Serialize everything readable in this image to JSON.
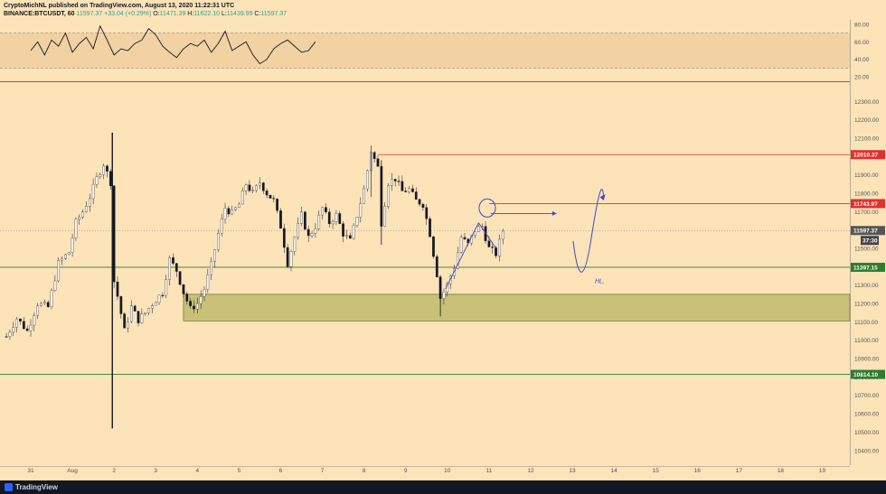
{
  "header": {
    "line1": "CryptoMichNL published on TradingView.com, August 13, 2020 11:22:31 UTC",
    "symbol": "BINANCE:BTCUSDT, 60",
    "price": "11597.37",
    "change": "+33.04 (+0.29%)",
    "o_label": "O:",
    "o": "11471.39",
    "h_label": "H:",
    "h": "11622.10",
    "l_label": "L:",
    "l": "11439.99",
    "c_label": "C:",
    "c": "11597.37"
  },
  "footer": {
    "brand": "TradingView"
  },
  "colors": {
    "background": "#fde3b8",
    "bull": "#f5f5f5",
    "bear": "#131722",
    "resistance": "#e03030",
    "support": "#2e7d32",
    "annotation": "#3b4bc8"
  },
  "chart_data": [
    {
      "type": "line",
      "panel": "RSI",
      "ylim": [
        15,
        85
      ],
      "y_ticks": [
        "80.00",
        "60.00",
        "40.00",
        "20.00"
      ],
      "band": [
        30,
        70
      ],
      "x": [
        0,
        4,
        8,
        12,
        16,
        20,
        24,
        28,
        32,
        36,
        40,
        44,
        48,
        52,
        56,
        60,
        64,
        68,
        72,
        76,
        80,
        84,
        88,
        92,
        96,
        100,
        104,
        108,
        112,
        116,
        120,
        124,
        128,
        132,
        136,
        140,
        144,
        148,
        152,
        156,
        160,
        164
      ],
      "values": [
        50,
        60,
        45,
        62,
        55,
        70,
        48,
        58,
        65,
        52,
        78,
        62,
        45,
        52,
        50,
        58,
        62,
        75,
        68,
        55,
        48,
        42,
        52,
        58,
        55,
        62,
        48,
        58,
        72,
        50,
        55,
        60,
        45,
        35,
        40,
        52,
        58,
        62,
        55,
        48,
        50,
        60
      ]
    },
    {
      "type": "candlestick",
      "panel": "price",
      "x_unit": "hours from Jul 31 00:00",
      "ylim": [
        10330,
        12400
      ],
      "y_ticks": [
        "12300.00",
        "12200.00",
        "12100.00",
        "12000.00",
        "11900.00",
        "11800.00",
        "11700.00",
        "11600.00",
        "11500.00",
        "11400.00",
        "11300.00",
        "11200.00",
        "11100.00",
        "11000.00",
        "10900.00",
        "10800.00",
        "10700.00",
        "10600.00",
        "10500.00",
        "10400.00"
      ],
      "x_ticks": [
        "31",
        "Aug",
        "2",
        "3",
        "4",
        "5",
        "6",
        "7",
        "8",
        "9",
        "10",
        "11",
        "12",
        "13",
        "14",
        "15",
        "16",
        "17",
        "18",
        "19"
      ],
      "x_tick_hours": [
        0,
        24,
        48,
        72,
        96,
        120,
        144,
        168,
        192,
        216,
        240,
        264,
        288,
        312,
        336,
        360,
        384,
        408,
        432,
        456
      ],
      "last_close": 11597.37,
      "countdown": "37:30",
      "levels": [
        {
          "value": 12010.37,
          "label": "12010.37",
          "color": "#e03030"
        },
        {
          "value": 11743.97,
          "label": "11743.97",
          "color": "#e03030"
        },
        {
          "value": 11397.15,
          "label": "11397.15",
          "color": "#2e7d32"
        },
        {
          "value": 10814.1,
          "label": "10814.10",
          "color": "#2e7d32"
        }
      ],
      "zone": {
        "from_hour": 88,
        "to_value_low": 11105,
        "to_value_high": 11250
      },
      "annotation_text": "HL.",
      "projection": [
        [
          312.5,
          11540
        ],
        [
          317,
          11340
        ],
        [
          323,
          11560
        ],
        [
          330,
          11780
        ]
      ],
      "arrow": {
        "from": [
          265,
          11690
        ],
        "to": [
          302,
          11690
        ]
      },
      "anchors": [
        [
          -14,
          11020
        ],
        [
          -8,
          11120
        ],
        [
          -2,
          11050
        ],
        [
          4,
          11200
        ],
        [
          10,
          11180
        ],
        [
          16,
          11420
        ],
        [
          22,
          11480
        ],
        [
          26,
          11640
        ],
        [
          30,
          11700
        ],
        [
          34,
          11780
        ],
        [
          38,
          11880
        ],
        [
          42,
          11960
        ],
        [
          46,
          11860
        ],
        [
          47,
          11620
        ],
        [
          48,
          11320
        ],
        [
          50,
          11240
        ],
        [
          54,
          11050
        ],
        [
          58,
          11180
        ],
        [
          62,
          11110
        ],
        [
          66,
          11150
        ],
        [
          70,
          11200
        ],
        [
          76,
          11260
        ],
        [
          80,
          11440
        ],
        [
          84,
          11380
        ],
        [
          88,
          11260
        ],
        [
          92,
          11170
        ],
        [
          96,
          11200
        ],
        [
          100,
          11280
        ],
        [
          104,
          11410
        ],
        [
          108,
          11580
        ],
        [
          112,
          11720
        ],
        [
          116,
          11690
        ],
        [
          120,
          11740
        ],
        [
          124,
          11850
        ],
        [
          128,
          11800
        ],
        [
          132,
          11860
        ],
        [
          136,
          11800
        ],
        [
          140,
          11760
        ],
        [
          144,
          11620
        ],
        [
          148,
          11420
        ],
        [
          152,
          11560
        ],
        [
          156,
          11680
        ],
        [
          160,
          11560
        ],
        [
          164,
          11620
        ],
        [
          168,
          11720
        ],
        [
          172,
          11640
        ],
        [
          176,
          11680
        ],
        [
          180,
          11580
        ],
        [
          184,
          11540
        ],
        [
          188,
          11680
        ],
        [
          192,
          11820
        ],
        [
          196,
          12030
        ],
        [
          200,
          11940
        ],
        [
          202,
          11640
        ],
        [
          206,
          11860
        ],
        [
          210,
          11880
        ],
        [
          214,
          11810
        ],
        [
          218,
          11820
        ],
        [
          222,
          11760
        ],
        [
          226,
          11740
        ],
        [
          230,
          11580
        ],
        [
          234,
          11360
        ],
        [
          236,
          11230
        ],
        [
          240,
          11300
        ],
        [
          244,
          11400
        ],
        [
          248,
          11560
        ],
        [
          252,
          11520
        ],
        [
          256,
          11600
        ],
        [
          260,
          11620
        ],
        [
          264,
          11500
        ],
        [
          268,
          11470
        ],
        [
          272,
          11597
        ]
      ]
    }
  ]
}
